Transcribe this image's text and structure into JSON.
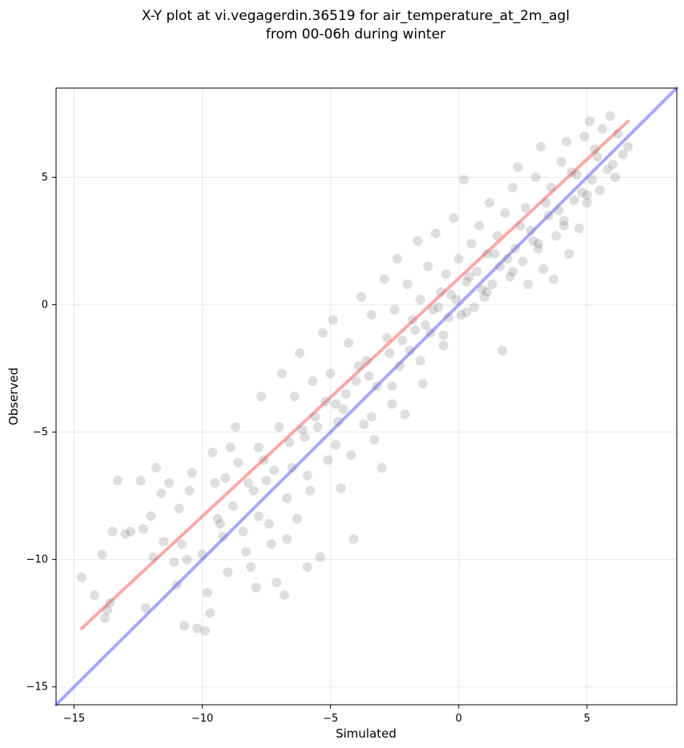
{
  "chart_data": {
    "type": "scatter",
    "title_lines": [
      "X-Y plot at vi.vegagerdin.36519 for air_temperature_at_2m_agl",
      "from 00-06h during winter"
    ],
    "xlabel": "Simulated",
    "ylabel": "Observed",
    "xlim": [
      -15.7,
      8.5
    ],
    "ylim": [
      -15.7,
      8.5
    ],
    "xticks": [
      -15,
      -10,
      -5,
      0,
      5
    ],
    "yticks": [
      -15,
      -10,
      -5,
      0,
      5
    ],
    "xtick_labels": [
      "−15",
      "−10",
      "−5",
      "0",
      "5"
    ],
    "ytick_labels": [
      "−15",
      "−10",
      "−5",
      "0",
      "5"
    ],
    "grid": true,
    "point_color": "#808080",
    "series": [
      {
        "points": [
          [
            -14.7,
            -10.7
          ],
          [
            -14.2,
            -11.4
          ],
          [
            -13.8,
            -12.3
          ],
          [
            -13.9,
            -9.8
          ],
          [
            -13.7,
            -12.0
          ],
          [
            -13.6,
            -11.7
          ],
          [
            -13.5,
            -8.9
          ],
          [
            -13.3,
            -6.9
          ],
          [
            -13.0,
            -9.0
          ],
          [
            -12.8,
            -8.9
          ],
          [
            -12.4,
            -6.9
          ],
          [
            -12.3,
            -8.8
          ],
          [
            -12.2,
            -11.9
          ],
          [
            -12.0,
            -8.3
          ],
          [
            -11.9,
            -9.9
          ],
          [
            -11.8,
            -6.4
          ],
          [
            -11.6,
            -7.4
          ],
          [
            -11.5,
            -9.3
          ],
          [
            -11.3,
            -7.0
          ],
          [
            -11.1,
            -10.1
          ],
          [
            -11.0,
            -11.0
          ],
          [
            -10.9,
            -8.0
          ],
          [
            -10.7,
            -12.6
          ],
          [
            -10.6,
            -10.0
          ],
          [
            -10.5,
            -7.3
          ],
          [
            -10.4,
            -6.6
          ],
          [
            -10.2,
            -12.7
          ],
          [
            -10.0,
            -9.8
          ],
          [
            -9.9,
            -12.8
          ],
          [
            -9.8,
            -11.3
          ],
          [
            -9.7,
            -12.1
          ],
          [
            -9.6,
            -5.8
          ],
          [
            -9.5,
            -7.0
          ],
          [
            -9.4,
            -8.4
          ],
          [
            -9.2,
            -9.1
          ],
          [
            -9.0,
            -10.5
          ],
          [
            -8.9,
            -5.6
          ],
          [
            -8.7,
            -4.8
          ],
          [
            -8.6,
            -6.2
          ],
          [
            -8.4,
            -8.9
          ],
          [
            -8.3,
            -9.7
          ],
          [
            -8.1,
            -10.3
          ],
          [
            -8.0,
            -7.3
          ],
          [
            -7.9,
            -11.1
          ],
          [
            -7.8,
            -5.6
          ],
          [
            -7.7,
            -3.6
          ],
          [
            -7.5,
            -6.9
          ],
          [
            -7.4,
            -8.6
          ],
          [
            -7.3,
            -9.4
          ],
          [
            -7.1,
            -10.9
          ],
          [
            -7.0,
            -4.8
          ],
          [
            -6.9,
            -2.7
          ],
          [
            -6.8,
            -11.4
          ],
          [
            -6.7,
            -9.2
          ],
          [
            -6.5,
            -6.4
          ],
          [
            -6.4,
            -3.6
          ],
          [
            -6.3,
            -8.4
          ],
          [
            -6.2,
            -1.9
          ],
          [
            -6.0,
            -5.2
          ],
          [
            -5.9,
            -10.3
          ],
          [
            -5.8,
            -7.3
          ],
          [
            -5.7,
            -3.0
          ],
          [
            -5.5,
            -4.8
          ],
          [
            -5.4,
            -9.9
          ],
          [
            -5.3,
            -1.1
          ],
          [
            -5.1,
            -6.1
          ],
          [
            -5.0,
            -2.7
          ],
          [
            -4.9,
            -0.6
          ],
          [
            -4.8,
            -3.9
          ],
          [
            -4.6,
            -7.2
          ],
          [
            -4.5,
            -4.1
          ],
          [
            -4.3,
            -1.5
          ],
          [
            -4.2,
            -5.9
          ],
          [
            -4.1,
            -9.2
          ],
          [
            -4.0,
            -3.0
          ],
          [
            -3.8,
            0.3
          ],
          [
            -3.7,
            -4.7
          ],
          [
            -3.6,
            -2.2
          ],
          [
            -3.4,
            -0.4
          ],
          [
            -3.3,
            -5.3
          ],
          [
            -3.2,
            -3.2
          ],
          [
            -3.0,
            -6.4
          ],
          [
            -2.9,
            1.0
          ],
          [
            -2.8,
            -1.3
          ],
          [
            -2.6,
            -3.9
          ],
          [
            -2.5,
            -0.2
          ],
          [
            -2.4,
            1.8
          ],
          [
            -2.3,
            -2.4
          ],
          [
            -2.1,
            -4.3
          ],
          [
            -2.0,
            0.8
          ],
          [
            -1.9,
            -1.8
          ],
          [
            -1.8,
            -0.6
          ],
          [
            -1.6,
            2.5
          ],
          [
            -1.5,
            0.2
          ],
          [
            -1.4,
            -3.1
          ],
          [
            -1.2,
            1.5
          ],
          [
            -1.1,
            -1.1
          ],
          [
            -1.0,
            -0.2
          ],
          [
            -0.9,
            2.8
          ],
          [
            -0.7,
            0.5
          ],
          [
            -0.6,
            -1.6
          ],
          [
            -0.5,
            1.2
          ],
          [
            -0.4,
            -0.5
          ],
          [
            -0.2,
            3.4
          ],
          [
            -0.1,
            0.2
          ],
          [
            0.0,
            1.8
          ],
          [
            0.1,
            -0.4
          ],
          [
            0.2,
            4.9
          ],
          [
            0.3,
            0.9
          ],
          [
            0.5,
            2.4
          ],
          [
            0.6,
            -0.1
          ],
          [
            0.7,
            1.3
          ],
          [
            0.8,
            3.1
          ],
          [
            1.0,
            0.3
          ],
          [
            1.1,
            2.0
          ],
          [
            1.2,
            4.0
          ],
          [
            1.3,
            0.8
          ],
          [
            1.5,
            2.7
          ],
          [
            1.6,
            1.5
          ],
          [
            1.7,
            -1.8
          ],
          [
            1.8,
            3.6
          ],
          [
            2.0,
            1.1
          ],
          [
            2.1,
            4.6
          ],
          [
            2.2,
            2.2
          ],
          [
            2.3,
            5.4
          ],
          [
            2.5,
            1.7
          ],
          [
            2.6,
            3.8
          ],
          [
            2.7,
            0.8
          ],
          [
            2.8,
            2.9
          ],
          [
            3.0,
            5.0
          ],
          [
            3.1,
            2.4
          ],
          [
            3.2,
            6.2
          ],
          [
            3.3,
            1.4
          ],
          [
            3.5,
            3.5
          ],
          [
            3.6,
            4.6
          ],
          [
            3.7,
            1.0
          ],
          [
            3.8,
            2.7
          ],
          [
            4.0,
            5.6
          ],
          [
            4.1,
            3.3
          ],
          [
            4.2,
            6.4
          ],
          [
            4.3,
            2.0
          ],
          [
            4.5,
            4.1
          ],
          [
            4.6,
            5.1
          ],
          [
            4.7,
            3.0
          ],
          [
            4.9,
            6.6
          ],
          [
            5.0,
            4.3
          ],
          [
            5.1,
            7.2
          ],
          [
            5.2,
            4.9
          ],
          [
            5.4,
            5.8
          ],
          [
            5.5,
            4.5
          ],
          [
            5.6,
            6.9
          ],
          [
            5.8,
            5.3
          ],
          [
            5.9,
            7.4
          ],
          [
            6.0,
            5.5
          ],
          [
            6.1,
            5.0
          ],
          [
            6.2,
            6.7
          ],
          [
            6.4,
            5.9
          ],
          [
            6.6,
            6.2
          ],
          [
            -8.8,
            -7.9
          ],
          [
            -7.2,
            -6.5
          ],
          [
            -6.6,
            -5.4
          ],
          [
            -5.6,
            -4.4
          ],
          [
            -4.4,
            -3.5
          ],
          [
            -3.5,
            -2.8
          ],
          [
            -2.2,
            -1.4
          ],
          [
            -1.3,
            -0.8
          ],
          [
            -0.3,
            0.4
          ],
          [
            0.4,
            1.1
          ],
          [
            1.4,
            2.0
          ],
          [
            2.4,
            3.1
          ],
          [
            3.4,
            4.0
          ],
          [
            4.4,
            5.2
          ],
          [
            5.3,
            6.1
          ],
          [
            -9.3,
            -8.6
          ],
          [
            -8.2,
            -7.0
          ],
          [
            -7.6,
            -6.1
          ],
          [
            -6.1,
            -4.9
          ],
          [
            -5.2,
            -3.8
          ],
          [
            -4.7,
            -4.6
          ],
          [
            -3.9,
            -2.4
          ],
          [
            -2.7,
            -1.9
          ],
          [
            -1.7,
            -1.0
          ],
          [
            -0.8,
            -0.1
          ],
          [
            0.9,
            0.6
          ],
          [
            1.9,
            1.8
          ],
          [
            2.9,
            2.5
          ],
          [
            3.9,
            3.7
          ],
          [
            4.8,
            4.4
          ],
          [
            -10.8,
            -9.4
          ],
          [
            -9.1,
            -6.8
          ],
          [
            -7.8,
            -8.3
          ],
          [
            -6.7,
            -7.6
          ],
          [
            -5.9,
            -6.7
          ],
          [
            -4.8,
            -5.5
          ],
          [
            -3.4,
            -4.4
          ],
          [
            -2.6,
            -3.2
          ],
          [
            -1.5,
            -2.2
          ],
          [
            -0.6,
            -1.2
          ],
          [
            0.3,
            -0.3
          ],
          [
            1.1,
            0.5
          ],
          [
            2.1,
            1.3
          ],
          [
            3.1,
            2.2
          ],
          [
            4.1,
            3.1
          ],
          [
            5.0,
            4.0
          ]
        ]
      }
    ],
    "reference_lines": [
      {
        "color": "#ff0000",
        "from": [
          -14.7,
          -12.7
        ],
        "to": [
          6.6,
          7.2
        ]
      },
      {
        "color": "#0000ff",
        "from": [
          -15.7,
          -15.7
        ],
        "to": [
          8.5,
          8.5
        ]
      }
    ]
  }
}
